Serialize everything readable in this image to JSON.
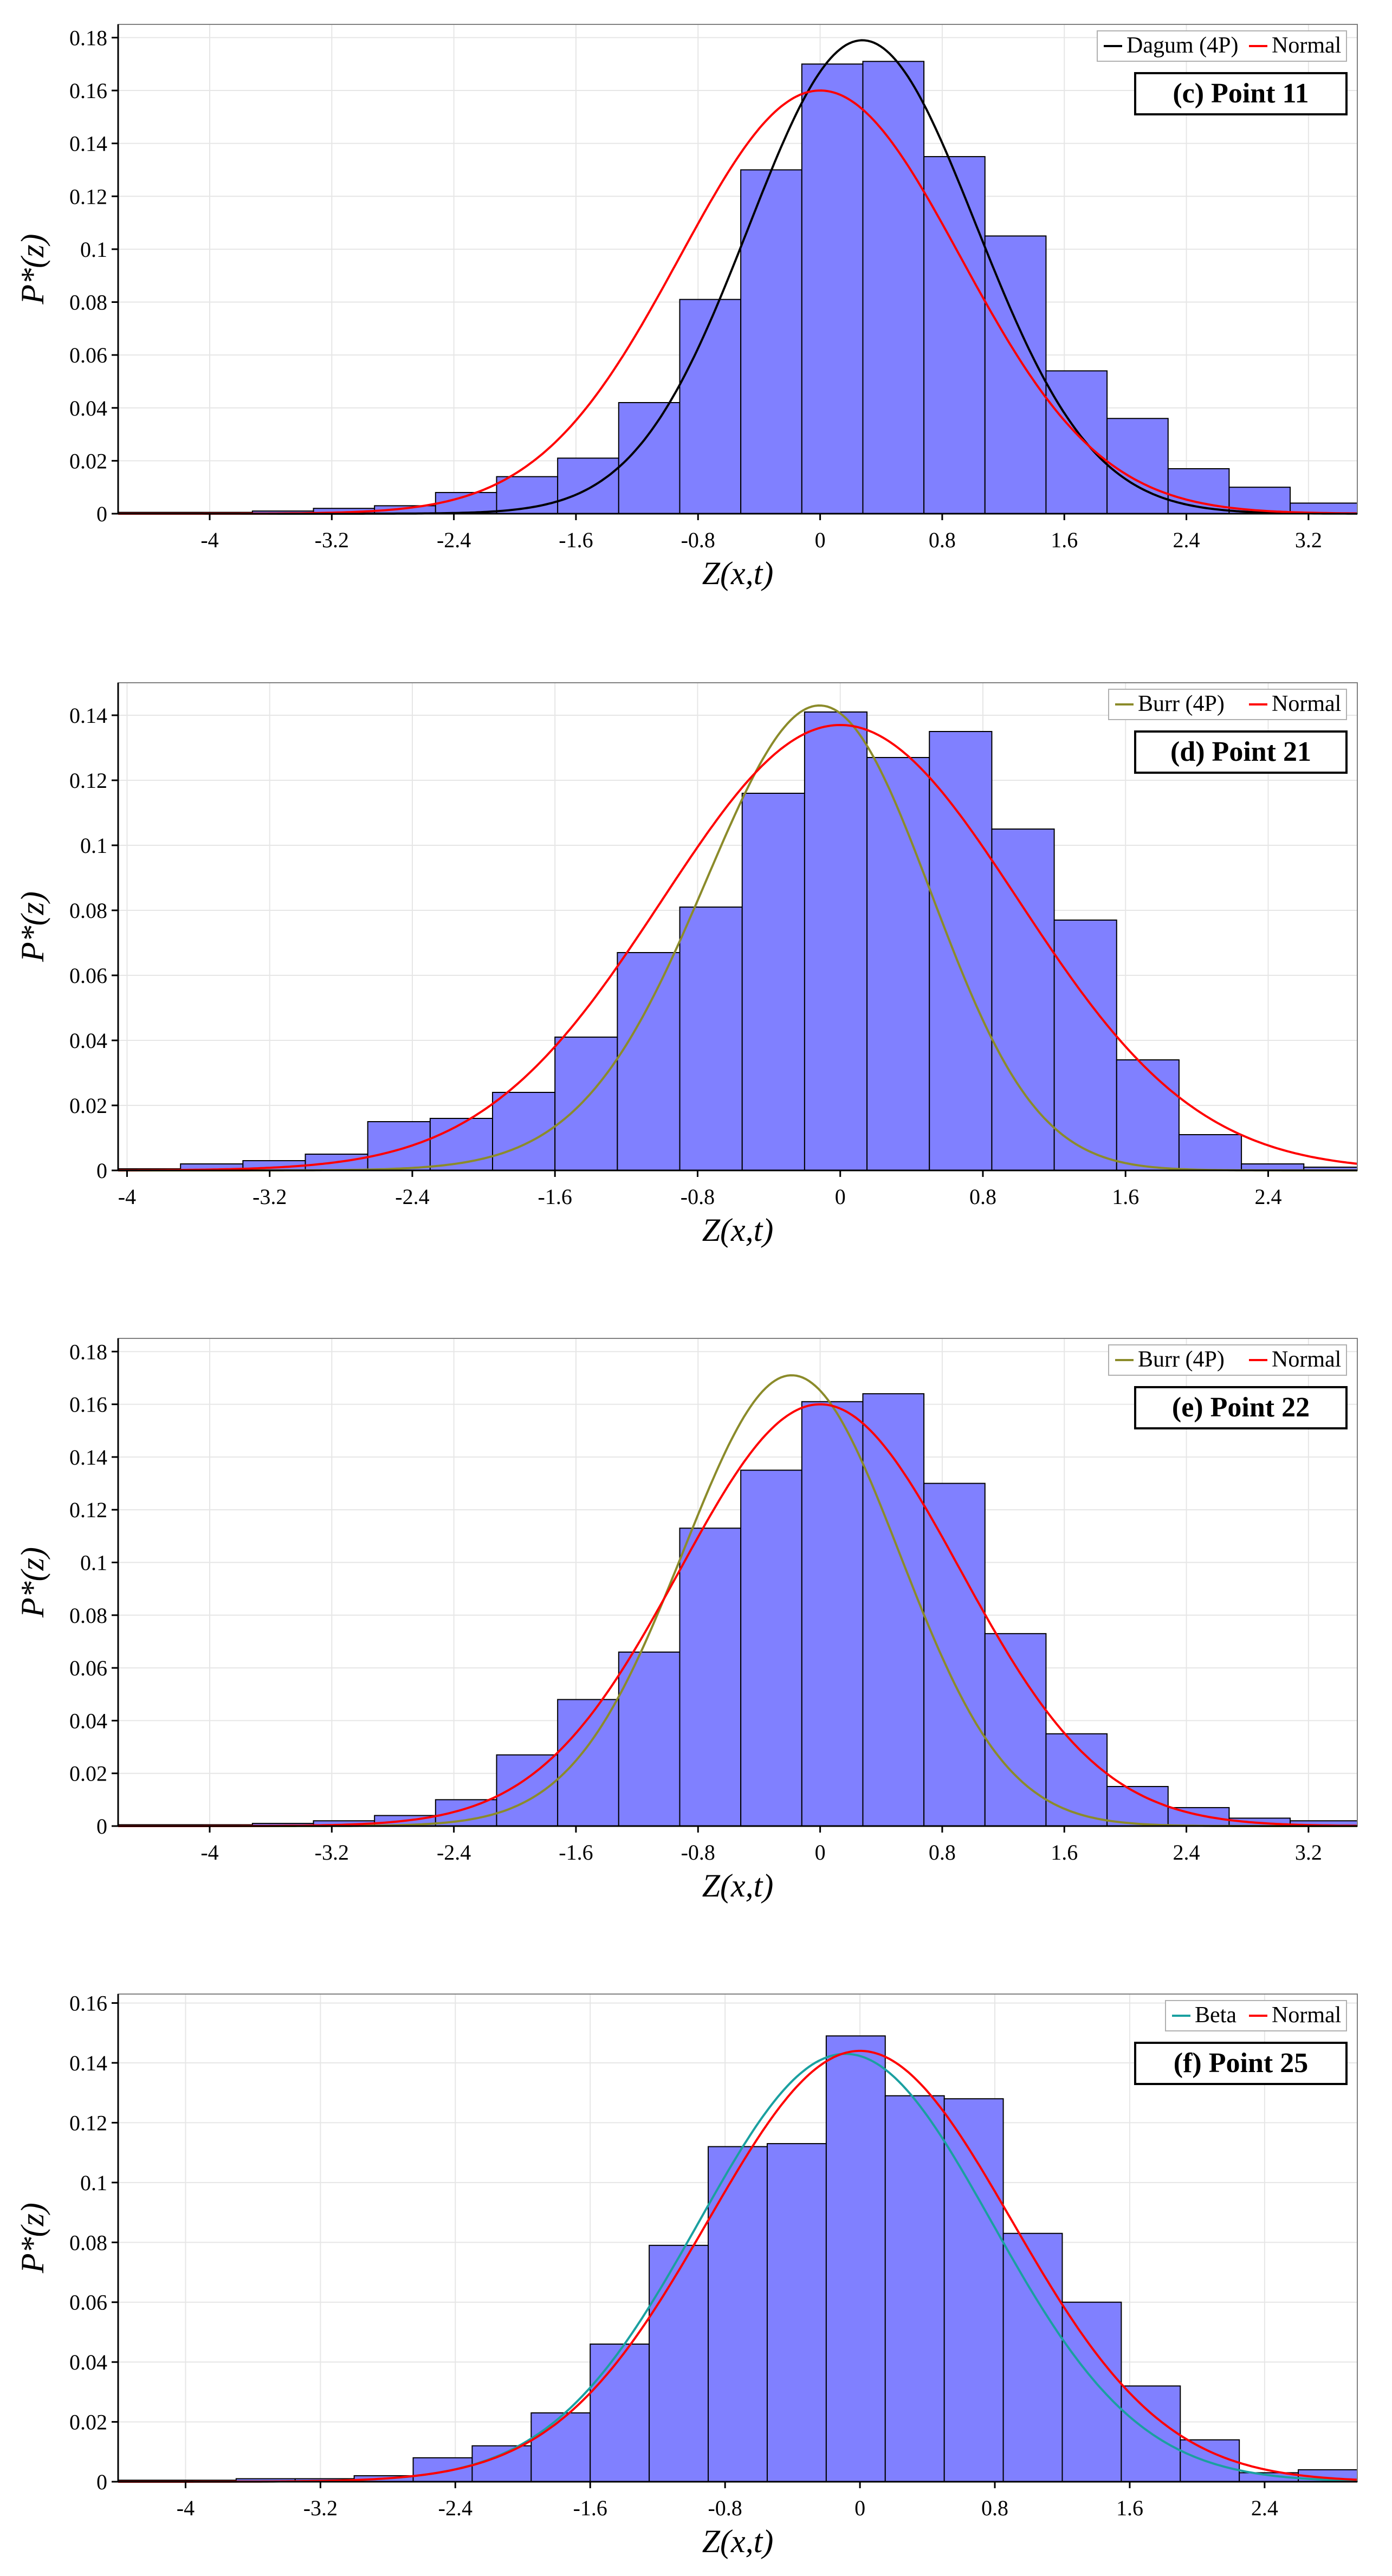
{
  "chart_data": [
    {
      "type": "bar",
      "panel_label": "(c) Point 11",
      "xlabel": "Z(x,t)",
      "ylabel": "P*(z)",
      "xlim": [
        -4.6,
        3.52
      ],
      "ylim": [
        0,
        0.185
      ],
      "x_ticks": [
        -4,
        -3.2,
        -2.4,
        -1.6,
        -0.8,
        0,
        0.8,
        1.6,
        2.4,
        3.2
      ],
      "x_tick_labels": [
        "-4",
        "-3.2",
        "-2.4",
        "-1.6",
        "-0.8",
        "0",
        "0.8",
        "1.6",
        "2.4",
        "3.2"
      ],
      "y_ticks": [
        0,
        0.02,
        0.04,
        0.06,
        0.08,
        0.1,
        0.12,
        0.14,
        0.16,
        0.18
      ],
      "y_tick_labels": [
        "0",
        "0.02",
        "0.04",
        "0.06",
        "0.08",
        "0.1",
        "0.12",
        "0.14",
        "0.16",
        "0.18"
      ],
      "bin_edges": [
        -4.6,
        -3.72,
        -3.32,
        -2.92,
        -2.52,
        -2.12,
        -1.72,
        -1.32,
        -0.92,
        -0.52,
        -0.12,
        0.28,
        0.68,
        1.08,
        1.48,
        1.88,
        2.28,
        2.68,
        3.08,
        3.52
      ],
      "values": [
        0.0005,
        0.001,
        0.002,
        0.003,
        0.008,
        0.014,
        0.021,
        0.042,
        0.081,
        0.13,
        0.17,
        0.171,
        0.135,
        0.105,
        0.054,
        0.036,
        0.017,
        0.01,
        0.004
      ],
      "legend": [
        "Dagum (4P)",
        "Normal"
      ],
      "series": [
        {
          "name": "Dagum (4P)",
          "color": "#000000",
          "model": "skew-normal",
          "mean": 0.0,
          "sd": 0.8,
          "alpha": 0.5,
          "peak": 0.179
        },
        {
          "name": "Normal",
          "color": "#ff0000",
          "model": "normal",
          "mean": 0.0,
          "sd": 0.92,
          "alpha": 0,
          "peak": 0.16
        }
      ]
    },
    {
      "type": "bar",
      "panel_label": "(d) Point 21",
      "xlabel": "Z(x,t)",
      "ylabel": "P*(z)",
      "xlim": [
        -4.05,
        2.9
      ],
      "ylim": [
        0,
        0.15
      ],
      "x_ticks": [
        -4,
        -3.2,
        -2.4,
        -1.6,
        -0.8,
        0,
        0.8,
        1.6,
        2.4
      ],
      "x_tick_labels": [
        "-4",
        "-3.2",
        "-2.4",
        "-1.6",
        "-0.8",
        "0",
        "0.8",
        "1.6",
        "2.4"
      ],
      "y_ticks": [
        0,
        0.02,
        0.04,
        0.06,
        0.08,
        0.1,
        0.12,
        0.14
      ],
      "y_tick_labels": [
        "0",
        "0.02",
        "0.04",
        "0.06",
        "0.08",
        "0.1",
        "0.12",
        "0.14"
      ],
      "bin_edges": [
        -4.05,
        -3.7,
        -3.35,
        -3.0,
        -2.65,
        -2.3,
        -1.95,
        -1.6,
        -1.25,
        -0.9,
        -0.55,
        -0.2,
        0.15,
        0.5,
        0.85,
        1.2,
        1.55,
        1.9,
        2.25,
        2.6,
        2.9
      ],
      "values": [
        0.0005,
        0.002,
        0.003,
        0.005,
        0.015,
        0.016,
        0.024,
        0.041,
        0.067,
        0.081,
        0.116,
        0.141,
        0.127,
        0.135,
        0.105,
        0.077,
        0.034,
        0.011,
        0.002,
        0.001
      ],
      "legend": [
        "Burr (4P)",
        "Normal"
      ],
      "series": [
        {
          "name": "Burr (4P)",
          "color": "#8b8b2a",
          "model": "skew-normal",
          "mean": 0.3,
          "sd": 0.8,
          "alpha": -1.1,
          "peak": 0.143
        },
        {
          "name": "Normal",
          "color": "#ff0000",
          "model": "normal",
          "mean": 0.0,
          "sd": 1.0,
          "alpha": 0,
          "peak": 0.137
        }
      ]
    },
    {
      "type": "bar",
      "panel_label": "(e) Point 22",
      "xlabel": "Z(x,t)",
      "ylabel": "P*(z)",
      "xlim": [
        -4.6,
        3.52
      ],
      "ylim": [
        0,
        0.185
      ],
      "x_ticks": [
        -4,
        -3.2,
        -2.4,
        -1.6,
        -0.8,
        0,
        0.8,
        1.6,
        2.4,
        3.2
      ],
      "x_tick_labels": [
        "-4",
        "-3.2",
        "-2.4",
        "-1.6",
        "-0.8",
        "0",
        "0.8",
        "1.6",
        "2.4",
        "3.2"
      ],
      "y_ticks": [
        0,
        0.02,
        0.04,
        0.06,
        0.08,
        0.1,
        0.12,
        0.14,
        0.16,
        0.18
      ],
      "y_tick_labels": [
        "0",
        "0.02",
        "0.04",
        "0.06",
        "0.08",
        "0.1",
        "0.12",
        "0.14",
        "0.16",
        "0.18"
      ],
      "bin_edges": [
        -4.6,
        -3.72,
        -3.32,
        -2.92,
        -2.52,
        -2.12,
        -1.72,
        -1.32,
        -0.92,
        -0.52,
        -0.12,
        0.28,
        0.68,
        1.08,
        1.48,
        1.88,
        2.28,
        2.68,
        3.08,
        3.52
      ],
      "values": [
        0.0005,
        0.001,
        0.002,
        0.004,
        0.01,
        0.027,
        0.048,
        0.066,
        0.113,
        0.135,
        0.161,
        0.164,
        0.13,
        0.073,
        0.035,
        0.015,
        0.007,
        0.003,
        0.002
      ],
      "legend": [
        "Burr (4P)",
        "Normal"
      ],
      "series": [
        {
          "name": "Burr (4P)",
          "color": "#8b8b2a",
          "model": "skew-normal",
          "mean": 0.12,
          "sd": 0.78,
          "alpha": -0.6,
          "peak": 0.171
        },
        {
          "name": "Normal",
          "color": "#ff0000",
          "model": "normal",
          "mean": 0.0,
          "sd": 0.92,
          "alpha": 0,
          "peak": 0.16
        }
      ]
    },
    {
      "type": "bar",
      "panel_label": "(f) Point 25",
      "xlabel": "Z(x,t)",
      "ylabel": "P*(z)",
      "xlim": [
        -4.4,
        2.95
      ],
      "ylim": [
        0,
        0.163
      ],
      "x_ticks": [
        -4,
        -3.2,
        -2.4,
        -1.6,
        -0.8,
        0,
        0.8,
        1.6,
        2.4
      ],
      "x_tick_labels": [
        "-4",
        "-3.2",
        "-2.4",
        "-1.6",
        "-0.8",
        "0",
        "0.8",
        "1.6",
        "2.4"
      ],
      "y_ticks": [
        0,
        0.02,
        0.04,
        0.06,
        0.08,
        0.1,
        0.12,
        0.14,
        0.16
      ],
      "y_tick_labels": [
        "0",
        "0.02",
        "0.04",
        "0.06",
        "0.08",
        "0.1",
        "0.12",
        "0.14",
        "0.16"
      ],
      "bin_edges": [
        -4.4,
        -3.7,
        -3.35,
        -3.0,
        -2.65,
        -2.3,
        -1.95,
        -1.6,
        -1.25,
        -0.9,
        -0.55,
        -0.2,
        0.15,
        0.5,
        0.85,
        1.2,
        1.55,
        1.9,
        2.25,
        2.6,
        2.95
      ],
      "values": [
        0.0005,
        0.001,
        0.001,
        0.002,
        0.008,
        0.012,
        0.023,
        0.046,
        0.079,
        0.112,
        0.113,
        0.149,
        0.129,
        0.128,
        0.083,
        0.06,
        0.032,
        0.014,
        0.003,
        0.004
      ],
      "legend": [
        "Beta",
        "Normal"
      ],
      "series": [
        {
          "name": "Beta",
          "color": "#1aa0a0",
          "model": "skew-normal",
          "mean": 0.05,
          "sd": 0.88,
          "alpha": -0.2,
          "peak": 0.143
        },
        {
          "name": "Normal",
          "color": "#ff0000",
          "model": "normal",
          "mean": 0.0,
          "sd": 0.9,
          "alpha": 0,
          "peak": 0.144
        }
      ]
    }
  ]
}
